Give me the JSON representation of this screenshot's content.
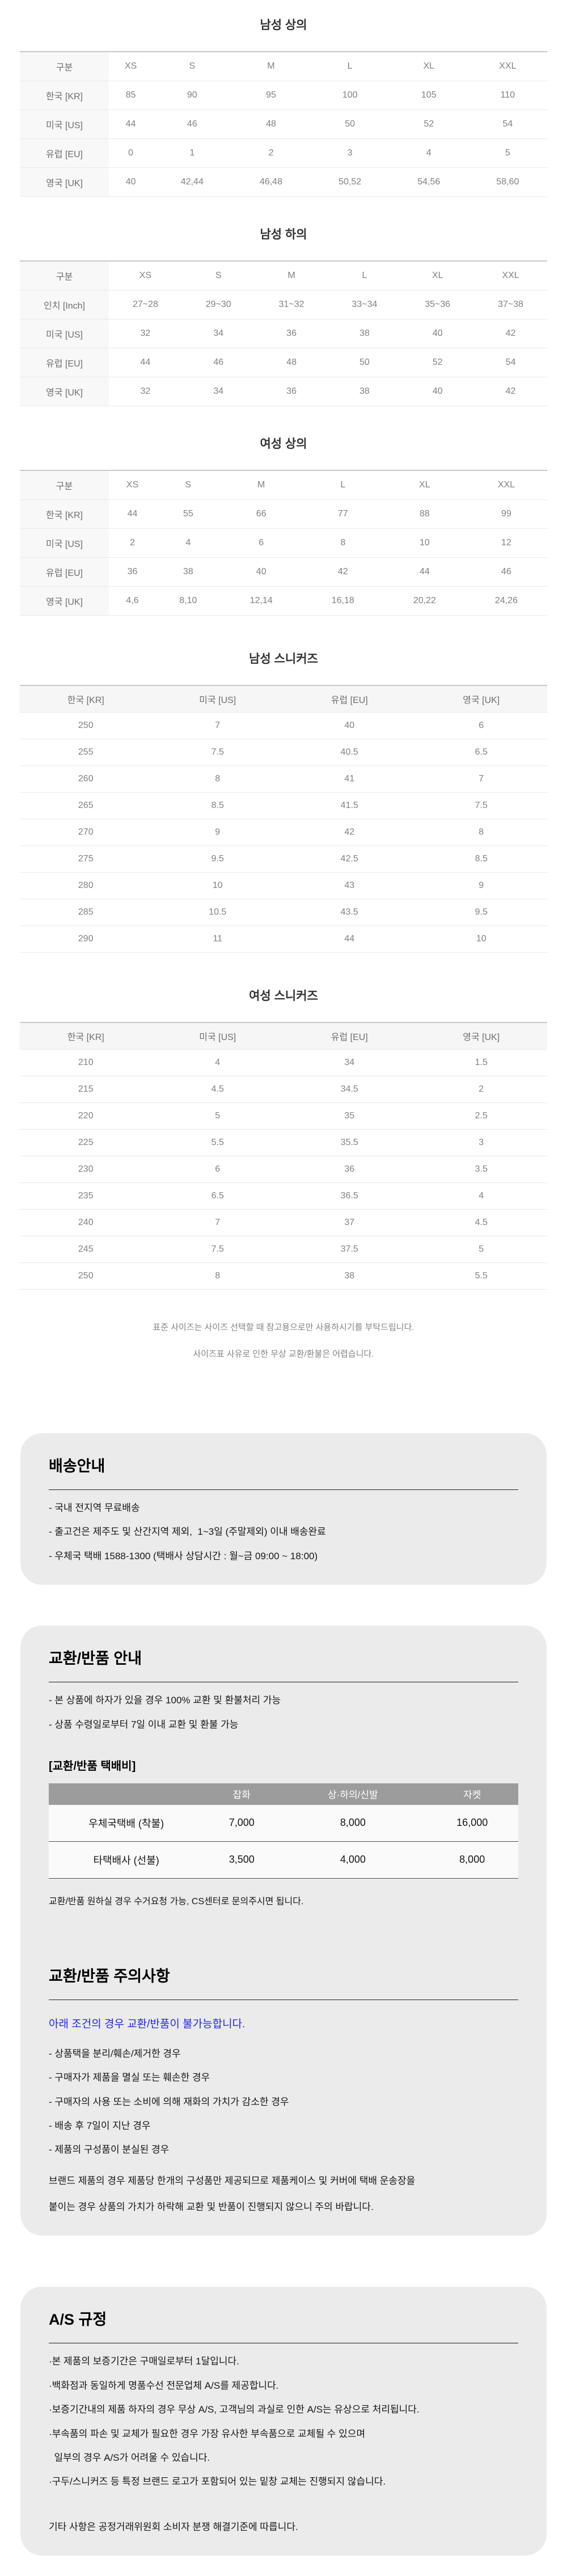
{
  "size_tables": [
    {
      "title": "남성 상의",
      "header": [
        "구분",
        "XS",
        "S",
        "M",
        "L",
        "XL",
        "XXL"
      ],
      "rows": [
        [
          "한국 [KR]",
          "85",
          "90",
          "95",
          "100",
          "105",
          "110"
        ],
        [
          "미국 [US]",
          "44",
          "46",
          "48",
          "50",
          "52",
          "54"
        ],
        [
          "유럽 [EU]",
          "0",
          "1",
          "2",
          "3",
          "4",
          "5"
        ],
        [
          "영국 [UK]",
          "40",
          "42,44",
          "46,48",
          "50,52",
          "54,56",
          "58,60"
        ]
      ]
    },
    {
      "title": "남성 하의",
      "header": [
        "구분",
        "XS",
        "S",
        "M",
        "L",
        "XL",
        "XXL"
      ],
      "rows": [
        [
          "인치 [Inch]",
          "27~28",
          "29~30",
          "31~32",
          "33~34",
          "35~36",
          "37~38"
        ],
        [
          "미국 [US]",
          "32",
          "34",
          "36",
          "38",
          "40",
          "42"
        ],
        [
          "유럽 [EU]",
          "44",
          "46",
          "48",
          "50",
          "52",
          "54"
        ],
        [
          "영국 [UK]",
          "32",
          "34",
          "36",
          "38",
          "40",
          "42"
        ]
      ]
    },
    {
      "title": "여성 상의",
      "header": [
        "구분",
        "XS",
        "S",
        "M",
        "L",
        "XL",
        "XXL"
      ],
      "rows": [
        [
          "한국 [KR]",
          "44",
          "55",
          "66",
          "77",
          "88",
          "99"
        ],
        [
          "미국 [US]",
          "2",
          "4",
          "6",
          "8",
          "10",
          "12"
        ],
        [
          "유럽 [EU]",
          "36",
          "38",
          "40",
          "42",
          "44",
          "46"
        ],
        [
          "영국 [UK]",
          "4,6",
          "8,10",
          "12,14",
          "16,18",
          "20,22",
          "24,26"
        ]
      ]
    }
  ],
  "sneaker_tables": [
    {
      "title": "남성 스니커즈",
      "header": [
        "한국 [KR]",
        "미국 [US]",
        "유럽 [EU]",
        "영국 [UK]"
      ],
      "rows": [
        [
          "250",
          "7",
          "40",
          "6"
        ],
        [
          "255",
          "7.5",
          "40.5",
          "6.5"
        ],
        [
          "260",
          "8",
          "41",
          "7"
        ],
        [
          "265",
          "8.5",
          "41.5",
          "7.5"
        ],
        [
          "270",
          "9",
          "42",
          "8"
        ],
        [
          "275",
          "9.5",
          "42.5",
          "8.5"
        ],
        [
          "280",
          "10",
          "43",
          "9"
        ],
        [
          "285",
          "10.5",
          "43.5",
          "9.5"
        ],
        [
          "290",
          "11",
          "44",
          "10"
        ]
      ]
    },
    {
      "title": "여성 스니커즈",
      "header": [
        "한국 [KR]",
        "미국 [US]",
        "유럽 [EU]",
        "영국 [UK]"
      ],
      "rows": [
        [
          "210",
          "4",
          "34",
          "1.5"
        ],
        [
          "215",
          "4.5",
          "34.5",
          "2"
        ],
        [
          "220",
          "5",
          "35",
          "2.5"
        ],
        [
          "225",
          "5.5",
          "35.5",
          "3"
        ],
        [
          "230",
          "6",
          "36",
          "3.5"
        ],
        [
          "235",
          "6.5",
          "36.5",
          "4"
        ],
        [
          "240",
          "7",
          "37",
          "4.5"
        ],
        [
          "245",
          "7.5",
          "37.5",
          "5"
        ],
        [
          "250",
          "8",
          "38",
          "5.5"
        ]
      ]
    }
  ],
  "notes": [
    "표준 사이즈는 사이즈 선택할 때 참고용으로만 사용하시기를 부탁드립니다.",
    "사이즈표 사유로 인한 무상 교환/환불은 어렵습니다."
  ],
  "shipping": {
    "title": "배송안내",
    "items": [
      "- 국내 전지역 무료배송",
      "- 출고건은 제주도 및 산간지역 제외,  1~3일 (주말제외) 이내 배송완료",
      "- 우체국 택배 1588-1300 (택배사 상담시간 : 월~금 09:00 ~ 18:00)"
    ]
  },
  "exchange": {
    "title": "교환/반품 안내",
    "items": [
      "- 본 상품에 하자가 있을 경우 100% 교환 및 환불처리 가능",
      "- 상품 수령일로부터 7일 이내 교환 및 환불 가능"
    ],
    "fee_table_title": "[교환/반품 택배비]",
    "fee_table": {
      "header": [
        "",
        "잡화",
        "상·하의/신발",
        "자켓"
      ],
      "rows": [
        [
          "우체국택배 (착불)",
          "7,000",
          "8,000",
          "16,000"
        ],
        [
          "타택배사 (선불)",
          "3,500",
          "4,000",
          "8,000"
        ]
      ]
    },
    "fee_note": "교환/반품 원하실 경우 수거요청 가능, CS센터로 문의주시면 됩니다.",
    "caution_title": "교환/반품 주의사항",
    "caution_highlight": "아래 조건의 경우 교환/반품이 불가능합니다.",
    "caution_items": [
      "- 상품택을 분리/훼손/제거한 경우",
      "- 구매자가 제품을 멸실 또는 훼손한 경우",
      "- 구매자의 사용 또는 소비에 의해 재화의 가치가 감소한 경우",
      "- 배송 후 7일이 지난 경우",
      "- 제품의 구성품이 분실된 경우"
    ],
    "caution_paragraph": [
      "브랜드 제품의 경우 제품당 한개의 구성품만 제공되므로 제품케이스 및 커버에 택배 운송장을",
      "붙이는 경우 상품의 가치가 하락해 교환 및 반품이 진행되지 않으니 주의 바랍니다."
    ]
  },
  "as_policy": {
    "title": "A/S 규정",
    "items": [
      "·본 제품의 보증기간은 구매일로부터 1달입니다.",
      "·백화점과 동일하게 명품수선 전문업체 A/S를 제공합니다.",
      "·보증기간내의 제품 하자의 경우 무상 A/S, 고객님의 과실로 인한 A/S는 유상으로 처리됩니다.",
      "·부속품의 파손 및 교체가 필요한 경우 가장 유사한 부속품으로 교체될 수 있으며",
      "  일부의 경우 A/S가 어려울 수 있습니다.",
      "·구두/스니커즈 등 특정 브랜드 로고가 포함되어 있는 밑창 교체는 진행되지 않습니다."
    ],
    "footer": "기타 사항은 공정거래위원회 소비자 분쟁 해결기준에 따릅니다."
  },
  "colors": {
    "box_bg": "#ebebeb",
    "fee_header_bg": "#9c9c9c",
    "fee_header_text": "#ffffff",
    "fee_row_divider": "#49544e",
    "highlight_blue": "#2323f0",
    "table_label_bg": "#f8f8f8",
    "table_top_border": "#c9c9c9"
  }
}
